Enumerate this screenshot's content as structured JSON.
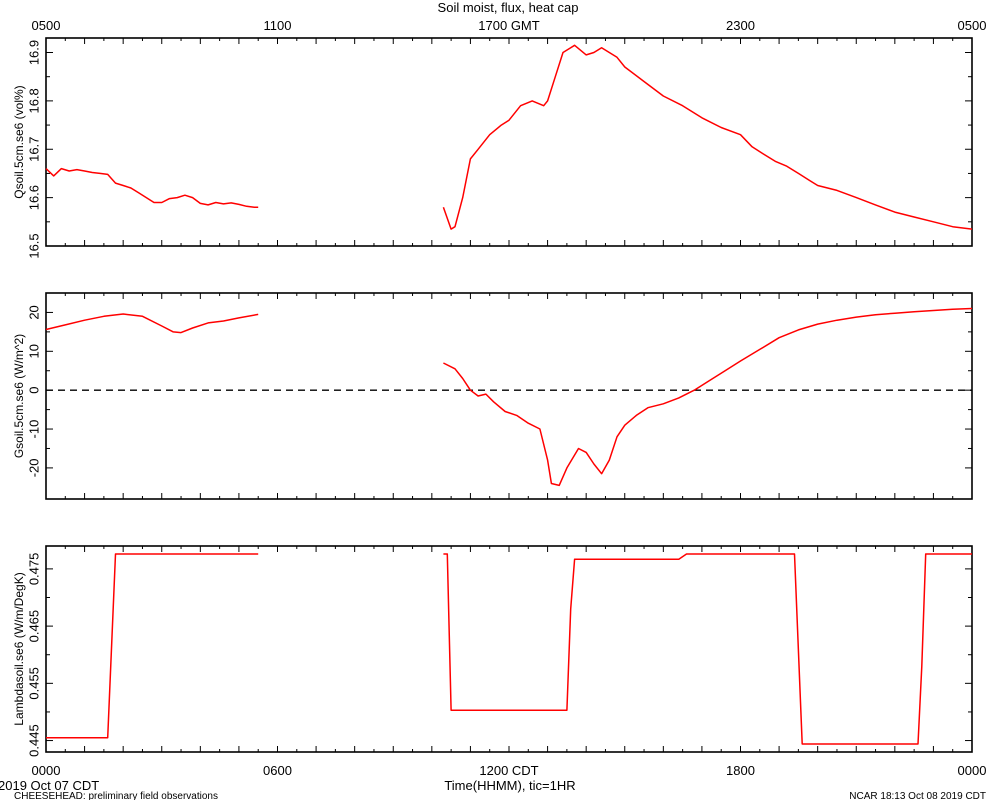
{
  "chart_data": {
    "type": "line",
    "title": "Soil moist, flux, heat cap",
    "x_range": [
      "0000",
      "0000"
    ],
    "bottom_axis": {
      "ticks": [
        "0000",
        "0600",
        "1200 CDT",
        "1800",
        "0000"
      ],
      "label": "Time(HHMM), tic=1HR",
      "date_label": "2019 Oct 07 CDT"
    },
    "top_axis": {
      "ticks": [
        "0500",
        "1100",
        "1700 GMT",
        "2300",
        "0500"
      ]
    },
    "footer": {
      "left": "CHEESEHEAD: preliminary field observations",
      "right": "NCAR 18:13 Oct 08 2019 CDT"
    },
    "line_color": "#ff0000",
    "panels": [
      {
        "ylabel": "Qsoil.5cm.se6 (vol%)",
        "ylim": [
          16.5,
          16.93
        ],
        "yticks": [
          "16.5",
          "16.6",
          "16.7",
          "16.8",
          "16.9"
        ],
        "series": [
          {
            "x": [
              0.0,
              0.2,
              0.4,
              0.6,
              0.8,
              1.0,
              1.2,
              1.4,
              1.6,
              1.8,
              2.0,
              2.2,
              2.4,
              2.6,
              2.8,
              3.0,
              3.2,
              3.4,
              3.6,
              3.8,
              4.0,
              4.2,
              4.4,
              4.6,
              4.8,
              5.0,
              5.2,
              5.4,
              5.5
            ],
            "y": [
              16.66,
              16.645,
              16.66,
              16.655,
              16.658,
              16.655,
              16.652,
              16.65,
              16.648,
              16.63,
              16.625,
              16.62,
              16.61,
              16.6,
              16.59,
              16.59,
              16.598,
              16.6,
              16.605,
              16.6,
              16.588,
              16.585,
              16.59,
              16.587,
              16.589,
              16.586,
              16.582,
              16.58,
              16.58
            ]
          },
          {
            "x": [
              10.3,
              10.5,
              10.6,
              10.8,
              11.0,
              11.2,
              11.5,
              11.8,
              12.0,
              12.3,
              12.6,
              12.9,
              13.0,
              13.2,
              13.4,
              13.6,
              13.7,
              14.0,
              14.2,
              14.4,
              14.6,
              14.8,
              15.0,
              15.5,
              16.0,
              16.5,
              17.0,
              17.5,
              18.0,
              18.3,
              18.6,
              18.9,
              19.2,
              19.5,
              19.8,
              20.0,
              20.5,
              21.0,
              21.5,
              22.0,
              22.5,
              23.0,
              23.5,
              24.0
            ],
            "y": [
              16.58,
              16.535,
              16.54,
              16.6,
              16.68,
              16.7,
              16.73,
              16.75,
              16.76,
              16.79,
              16.8,
              16.79,
              16.8,
              16.85,
              16.9,
              16.91,
              16.915,
              16.895,
              16.9,
              16.91,
              16.9,
              16.89,
              16.87,
              16.84,
              16.81,
              16.79,
              16.765,
              16.745,
              16.73,
              16.705,
              16.69,
              16.675,
              16.665,
              16.65,
              16.635,
              16.625,
              16.615,
              16.6,
              16.585,
              16.57,
              16.56,
              16.55,
              16.54,
              16.535
            ]
          }
        ]
      },
      {
        "ylabel": "Gsoil.5cm.se6 (W/m^2)",
        "ylim": [
          -28,
          25
        ],
        "yticks": [
          "-20",
          "-10",
          "0",
          "10",
          "20"
        ],
        "zero_line": true,
        "series": [
          {
            "x": [
              0.0,
              0.5,
              1.0,
              1.5,
              2.0,
              2.5,
              3.0,
              3.3,
              3.5,
              3.8,
              4.2,
              4.6,
              5.0,
              5.5
            ],
            "y": [
              15.6,
              16.8,
              18.0,
              19.0,
              19.6,
              19.0,
              16.5,
              15.0,
              14.8,
              16.0,
              17.3,
              17.8,
              18.6,
              19.5
            ]
          },
          {
            "x": [
              10.3,
              10.6,
              10.8,
              11.0,
              11.2,
              11.4,
              11.6,
              11.9,
              12.2,
              12.5,
              12.8,
              13.0,
              13.1,
              13.3,
              13.5,
              13.8,
              14.0,
              14.2,
              14.4,
              14.6,
              14.8,
              15.0,
              15.3,
              15.6,
              16.0,
              16.4,
              16.8,
              17.2,
              17.6,
              18.0,
              18.5,
              19.0,
              19.5,
              20.0,
              20.5,
              21.0,
              21.5,
              22.0,
              22.5,
              23.0,
              23.5,
              24.0
            ],
            "y": [
              7.0,
              5.5,
              3.0,
              0.0,
              -1.5,
              -1.0,
              -3.0,
              -5.5,
              -6.5,
              -8.5,
              -10.0,
              -18.0,
              -24.0,
              -24.5,
              -20.0,
              -15.0,
              -16.0,
              -19.0,
              -21.5,
              -18.0,
              -12.0,
              -9.0,
              -6.5,
              -4.5,
              -3.5,
              -2.0,
              0.0,
              2.5,
              5.0,
              7.5,
              10.5,
              13.5,
              15.5,
              17.0,
              18.0,
              18.8,
              19.4,
              19.8,
              20.2,
              20.5,
              20.8,
              21.0
            ]
          }
        ]
      },
      {
        "ylabel": "Lambdasoil.se6 (W/m/DegK)",
        "ylim": [
          0.443,
          0.479
        ],
        "yticks": [
          "0.445",
          "0.455",
          "0.465",
          "0.475"
        ],
        "series": [
          {
            "x": [
              0.0,
              1.6,
              1.8,
              5.5
            ],
            "y": [
              0.4455,
              0.4455,
              0.4776,
              0.4776
            ]
          },
          {
            "x": [
              10.3,
              10.4,
              10.5,
              13.5,
              13.6,
              13.7,
              16.4,
              16.6,
              19.4,
              19.6,
              22.6,
              22.7,
              22.8,
              24.0
            ],
            "y": [
              0.4776,
              0.4776,
              0.4503,
              0.4503,
              0.468,
              0.4767,
              0.4767,
              0.4776,
              0.4776,
              0.4444,
              0.4444,
              0.458,
              0.4776,
              0.4776
            ]
          }
        ]
      }
    ]
  }
}
